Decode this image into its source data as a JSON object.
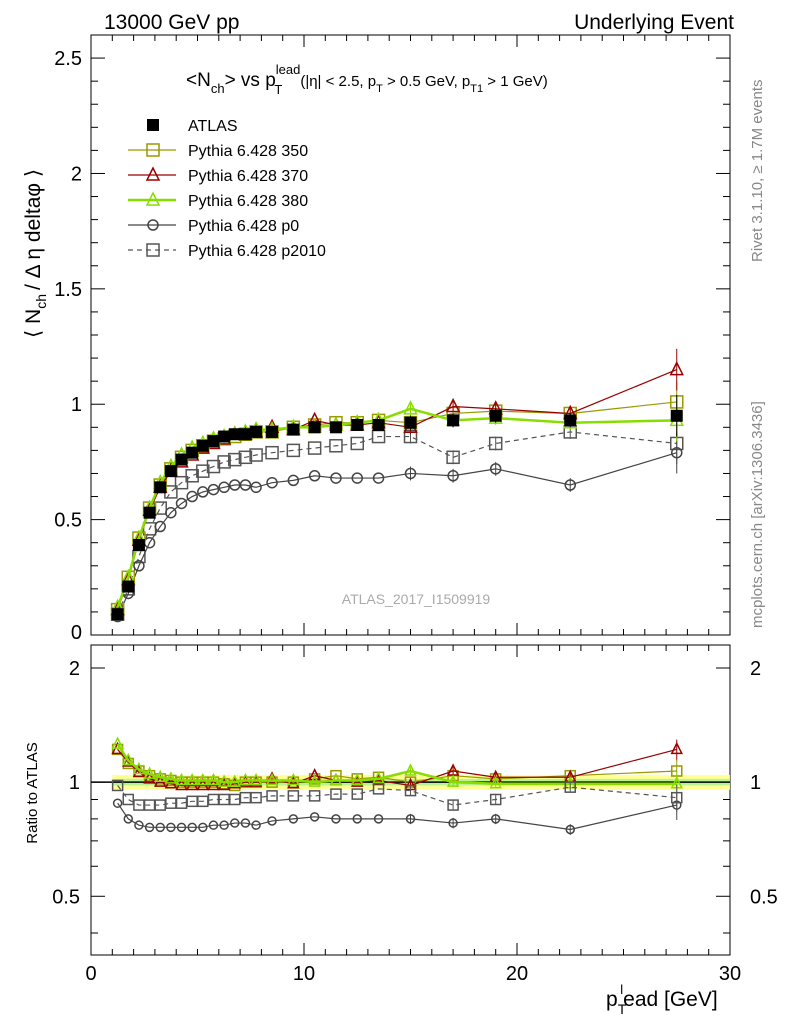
{
  "header": {
    "left": "13000 GeV pp",
    "right": "Underlying Event"
  },
  "side_labels": {
    "rivet": "Rivet 3.1.10, ≥ 1.7M events",
    "mcplots": "mcplots.cern.ch [arXiv:1306.3436]"
  },
  "main_plot": {
    "title_pre": "<N",
    "title_sub": "ch",
    "title_mid": "> vs p",
    "title_sup": "lead",
    "title_sub2": "T",
    "title_cuts_a": "(|η| < 2.5, p",
    "title_cuts_b": "T",
    "title_cuts_c": " > 0.5 GeV, p",
    "title_cuts_d": "T1",
    "title_cuts_e": " > 1 GeV)",
    "ylabel_a": "⟨ N",
    "ylabel_sub": "ch",
    "ylabel_b": "/ Δ η deltaφ ⟩",
    "watermark": "ATLAS_2017_I1509919",
    "yticks": [
      "0.5",
      "1",
      "1.5",
      "2",
      "2.5"
    ],
    "ytick_zero": "0"
  },
  "ratio_plot": {
    "ylabel": "Ratio to ATLAS",
    "yticks_left": [
      "0.5",
      "1",
      "2"
    ],
    "yticks_right": [
      "0.5",
      "1",
      "2"
    ]
  },
  "xaxis": {
    "ticks": [
      "0",
      "10",
      "20",
      "30"
    ],
    "label_a": "p",
    "label_sub": "T",
    "label_sup": "l",
    "label_b": "ead [GeV]"
  },
  "legend": [
    {
      "label": "ATLAS",
      "color": "#000000",
      "marker": "square-filled",
      "dashed": false
    },
    {
      "label": "Pythia 6.428 350",
      "color": "#999900",
      "marker": "square-open",
      "dashed": false
    },
    {
      "label": "Pythia 6.428 370",
      "color": "#990000",
      "marker": "triangle-open",
      "dashed": false
    },
    {
      "label": "Pythia 6.428 380",
      "color": "#88dd00",
      "marker": "triangle-open",
      "dashed": false
    },
    {
      "label": "Pythia 6.428 p0",
      "color": "#444444",
      "marker": "circle-open",
      "dashed": false
    },
    {
      "label": "Pythia 6.428 p2010",
      "color": "#555555",
      "marker": "square-open",
      "dashed": true
    }
  ],
  "chart_data": {
    "type": "line",
    "xlim": [
      0,
      30
    ],
    "ylim": [
      0,
      2.6
    ],
    "ratio_ylim": [
      0.35,
      2.3
    ],
    "ratio_log": true,
    "x": [
      1.25,
      1.75,
      2.25,
      2.75,
      3.25,
      3.75,
      4.25,
      4.75,
      5.25,
      5.75,
      6.25,
      6.75,
      7.25,
      7.75,
      8.5,
      9.5,
      10.5,
      11.5,
      12.5,
      13.5,
      15,
      17,
      19,
      22.5,
      27.5
    ],
    "series": [
      {
        "name": "ATLAS",
        "values": [
          0.09,
          0.21,
          0.39,
          0.53,
          0.64,
          0.71,
          0.76,
          0.79,
          0.82,
          0.84,
          0.86,
          0.87,
          0.87,
          0.88,
          0.88,
          0.89,
          0.9,
          0.9,
          0.91,
          0.91,
          0.92,
          0.93,
          0.95,
          0.93,
          0.95
        ]
      },
      {
        "name": "Pythia 6.428 350",
        "values": [
          0.11,
          0.25,
          0.42,
          0.55,
          0.65,
          0.72,
          0.77,
          0.8,
          0.82,
          0.84,
          0.85,
          0.86,
          0.87,
          0.88,
          0.88,
          0.9,
          0.91,
          0.92,
          0.92,
          0.93,
          0.92,
          0.96,
          0.97,
          0.96,
          1.01
        ]
      },
      {
        "name": "Pythia 6.428 370",
        "values": [
          0.11,
          0.24,
          0.41,
          0.54,
          0.64,
          0.71,
          0.75,
          0.78,
          0.81,
          0.83,
          0.85,
          0.87,
          0.87,
          0.88,
          0.9,
          0.89,
          0.93,
          0.91,
          0.91,
          0.92,
          0.9,
          0.99,
          0.98,
          0.96,
          1.15
        ]
      },
      {
        "name": "Pythia 6.428 380",
        "values": [
          0.12,
          0.25,
          0.42,
          0.55,
          0.66,
          0.73,
          0.78,
          0.81,
          0.83,
          0.85,
          0.86,
          0.87,
          0.88,
          0.89,
          0.89,
          0.9,
          0.9,
          0.91,
          0.92,
          0.93,
          0.98,
          0.93,
          0.94,
          0.92,
          0.93
        ]
      },
      {
        "name": "Pythia 6.428 p0",
        "values": [
          0.08,
          0.18,
          0.3,
          0.4,
          0.47,
          0.53,
          0.57,
          0.6,
          0.62,
          0.63,
          0.64,
          0.65,
          0.65,
          0.64,
          0.66,
          0.67,
          0.69,
          0.68,
          0.68,
          0.68,
          0.7,
          0.69,
          0.72,
          0.65,
          0.79
        ]
      },
      {
        "name": "Pythia 6.428 p2010",
        "values": [
          0.09,
          0.2,
          0.34,
          0.46,
          0.55,
          0.62,
          0.66,
          0.69,
          0.71,
          0.73,
          0.75,
          0.76,
          0.77,
          0.78,
          0.79,
          0.8,
          0.81,
          0.82,
          0.83,
          0.86,
          0.86,
          0.77,
          0.83,
          0.88,
          0.83
        ]
      }
    ],
    "ratio_series": [
      {
        "name": "Pythia 6.428 350",
        "values": [
          1.22,
          1.12,
          1.07,
          1.04,
          1.02,
          1.01,
          1.0,
          1.0,
          1.0,
          1.0,
          0.99,
          0.98,
          1.0,
          1.0,
          1.0,
          1.0,
          1.02,
          1.04,
          1.02,
          1.03,
          1.0,
          1.04,
          1.02,
          1.04,
          1.07
        ]
      },
      {
        "name": "Pythia 6.428 370",
        "values": [
          1.22,
          1.13,
          1.06,
          1.02,
          1.0,
          0.99,
          0.98,
          0.98,
          0.98,
          0.98,
          0.98,
          0.99,
          1.0,
          1.0,
          1.02,
          0.99,
          1.04,
          1.01,
          1.0,
          1.01,
          0.98,
          1.07,
          1.03,
          1.03,
          1.22
        ]
      },
      {
        "name": "Pythia 6.428 380",
        "values": [
          1.26,
          1.14,
          1.08,
          1.05,
          1.03,
          1.02,
          1.01,
          1.01,
          1.01,
          1.01,
          1.0,
          1.0,
          1.01,
          1.01,
          1.01,
          1.01,
          1.0,
          1.01,
          1.01,
          1.02,
          1.07,
          1.0,
          0.99,
          0.99,
          0.99
        ]
      },
      {
        "name": "Pythia 6.428 p0",
        "values": [
          0.88,
          0.8,
          0.77,
          0.76,
          0.76,
          0.76,
          0.76,
          0.76,
          0.76,
          0.77,
          0.77,
          0.78,
          0.78,
          0.77,
          0.79,
          0.8,
          0.81,
          0.8,
          0.8,
          0.8,
          0.8,
          0.78,
          0.8,
          0.75,
          0.87
        ]
      },
      {
        "name": "Pythia 6.428 p2010",
        "values": [
          0.98,
          0.9,
          0.87,
          0.87,
          0.87,
          0.88,
          0.88,
          0.89,
          0.89,
          0.9,
          0.9,
          0.9,
          0.91,
          0.91,
          0.92,
          0.92,
          0.92,
          0.93,
          0.93,
          0.96,
          0.95,
          0.87,
          0.9,
          0.97,
          0.91
        ]
      }
    ]
  }
}
